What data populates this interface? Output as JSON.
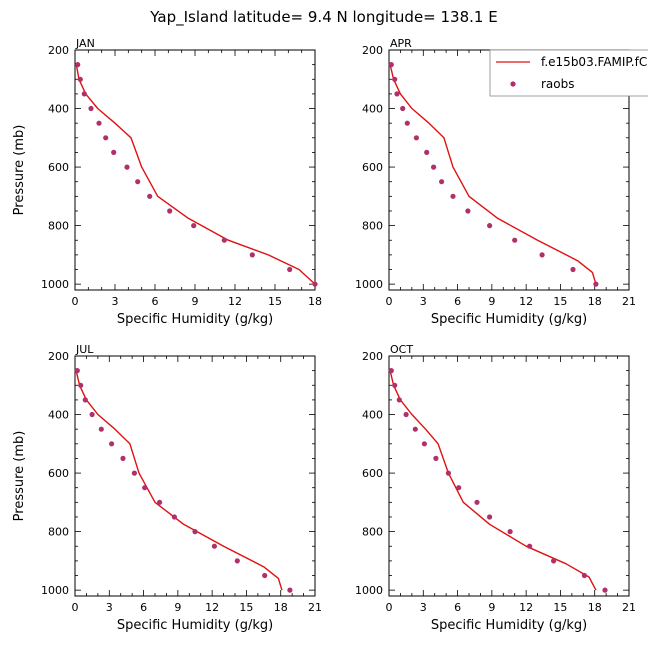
{
  "title": "Yap_Island  latitude= 9.4 N longitude= 138.1 E",
  "colors": {
    "model": "#e01010",
    "obs": "#b0306a",
    "axis": "#000000"
  },
  "legend": {
    "model_label": "f.e15b03.FAMIP.fC",
    "obs_label": "raobs",
    "placement": "top-right"
  },
  "chart_data": [
    {
      "type": "line",
      "panel": "JAN",
      "xlabel": "Specific Humidity (g/kg)",
      "ylabel": "Pressure (mb)",
      "xlim": [
        0,
        18
      ],
      "ylim": [
        200,
        1020
      ],
      "y_inverted": true,
      "xticks": [
        0,
        3,
        6,
        9,
        12,
        15,
        18
      ],
      "yticks": [
        200,
        400,
        600,
        800,
        1000
      ],
      "series": [
        {
          "name": "f.e15b03.FAMIP.fC",
          "kind": "line",
          "x": [
            0.1,
            0.3,
            0.8,
            1.7,
            3.0,
            4.2,
            5.0,
            6.2,
            8.5,
            11.5,
            14.5,
            16.8,
            18.0
          ],
          "y": [
            250,
            300,
            350,
            400,
            450,
            500,
            600,
            700,
            775,
            850,
            900,
            950,
            1000
          ]
        },
        {
          "name": "raobs",
          "kind": "scatter",
          "x": [
            0.2,
            0.4,
            0.7,
            1.2,
            1.8,
            2.3,
            2.9,
            3.9,
            4.7,
            5.6,
            7.1,
            8.9,
            11.2,
            13.3,
            16.1,
            18.0
          ],
          "y": [
            250,
            300,
            350,
            400,
            450,
            500,
            550,
            600,
            650,
            700,
            750,
            800,
            850,
            900,
            950,
            1000
          ]
        }
      ]
    },
    {
      "type": "line",
      "panel": "APR",
      "xlabel": "Specific Humidity (g/kg)",
      "ylabel": "",
      "xlim": [
        0,
        21
      ],
      "ylim": [
        200,
        1020
      ],
      "y_inverted": true,
      "xticks": [
        0,
        3,
        6,
        9,
        12,
        15,
        18,
        21
      ],
      "yticks": [
        200,
        400,
        600,
        800,
        1000
      ],
      "series": [
        {
          "name": "f.e15b03.FAMIP.fC",
          "kind": "line",
          "x": [
            0.1,
            0.4,
            1.0,
            2.0,
            3.5,
            4.8,
            5.6,
            7.0,
            9.5,
            13.0,
            16.5,
            17.8,
            18.1
          ],
          "y": [
            250,
            300,
            350,
            400,
            450,
            500,
            600,
            700,
            775,
            850,
            920,
            960,
            1000
          ]
        },
        {
          "name": "raobs",
          "kind": "scatter",
          "x": [
            0.2,
            0.5,
            0.7,
            1.2,
            1.6,
            2.4,
            3.3,
            3.9,
            4.6,
            5.6,
            6.9,
            8.8,
            11.0,
            13.4,
            16.1,
            18.1
          ],
          "y": [
            250,
            300,
            350,
            400,
            450,
            500,
            550,
            600,
            650,
            700,
            750,
            800,
            850,
            900,
            950,
            1000
          ]
        }
      ]
    },
    {
      "type": "line",
      "panel": "JUL",
      "xlabel": "Specific Humidity (g/kg)",
      "ylabel": "Pressure (mb)",
      "xlim": [
        0,
        21
      ],
      "ylim": [
        200,
        1020
      ],
      "y_inverted": true,
      "xticks": [
        0,
        3,
        6,
        9,
        12,
        15,
        18,
        21
      ],
      "yticks": [
        200,
        400,
        600,
        800,
        1000
      ],
      "series": [
        {
          "name": "f.e15b03.FAMIP.fC",
          "kind": "line",
          "x": [
            0.1,
            0.4,
            1.0,
            2.0,
            3.5,
            4.8,
            5.6,
            7.0,
            9.5,
            13.0,
            16.5,
            17.8,
            18.1
          ],
          "y": [
            250,
            300,
            350,
            400,
            450,
            500,
            600,
            700,
            775,
            850,
            920,
            960,
            1000
          ]
        },
        {
          "name": "raobs",
          "kind": "scatter",
          "x": [
            0.2,
            0.5,
            0.9,
            1.5,
            2.3,
            3.2,
            4.2,
            5.2,
            6.1,
            7.4,
            8.7,
            10.5,
            12.2,
            14.2,
            16.6,
            18.8
          ],
          "y": [
            250,
            300,
            350,
            400,
            450,
            500,
            550,
            600,
            650,
            700,
            750,
            800,
            850,
            900,
            950,
            1000
          ]
        }
      ]
    },
    {
      "type": "line",
      "panel": "OCT",
      "xlabel": "Specific Humidity (g/kg)",
      "ylabel": "",
      "xlim": [
        0,
        21
      ],
      "ylim": [
        200,
        1020
      ],
      "y_inverted": true,
      "xticks": [
        0,
        3,
        6,
        9,
        12,
        15,
        18,
        21
      ],
      "yticks": [
        200,
        400,
        600,
        800,
        1000
      ],
      "series": [
        {
          "name": "f.e15b03.FAMIP.fC",
          "kind": "line",
          "x": [
            0.1,
            0.4,
            1.0,
            2.0,
            3.2,
            4.3,
            5.2,
            6.5,
            8.8,
            12.0,
            15.5,
            17.5,
            18.1
          ],
          "y": [
            250,
            300,
            350,
            400,
            450,
            500,
            600,
            700,
            775,
            850,
            910,
            955,
            1000
          ]
        },
        {
          "name": "raobs",
          "kind": "scatter",
          "x": [
            0.2,
            0.5,
            0.9,
            1.5,
            2.3,
            3.1,
            4.1,
            5.2,
            6.1,
            7.7,
            8.8,
            10.6,
            12.3,
            14.4,
            17.1,
            18.9
          ],
          "y": [
            250,
            300,
            350,
            400,
            450,
            500,
            550,
            600,
            650,
            700,
            750,
            800,
            850,
            900,
            950,
            1000
          ]
        }
      ]
    }
  ]
}
